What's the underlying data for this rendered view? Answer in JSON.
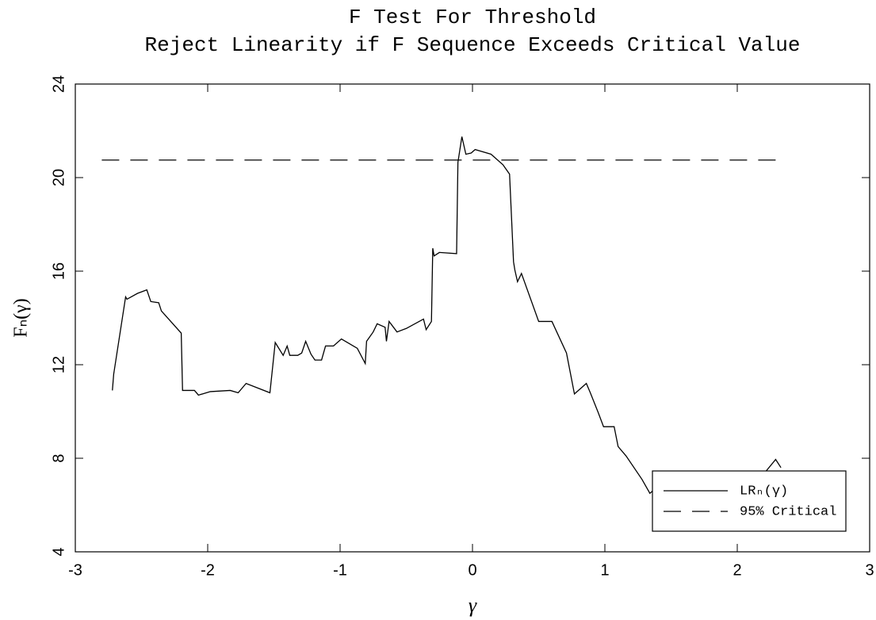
{
  "chart_data": {
    "type": "line",
    "title": "F Test For Threshold",
    "subtitle": "Reject Linearity if F Sequence Exceeds Critical Value",
    "xlabel": "γ",
    "ylabel": "Fₙ(γ)",
    "xlim": [
      -3,
      3
    ],
    "xticks": [
      -3,
      -2,
      -1,
      0,
      1,
      2,
      3
    ],
    "ylim": [
      4,
      24
    ],
    "yticks": [
      4,
      8,
      12,
      16,
      20,
      24
    ],
    "legend": "lower right",
    "series": [
      {
        "name": "LRₙ(γ)",
        "color": "#000000",
        "style": "solid",
        "x": [
          -2.72,
          -2.71,
          -2.62,
          -2.61,
          -2.53,
          -2.46,
          -2.43,
          -2.37,
          -2.35,
          -2.2,
          -2.19,
          -2.1,
          -2.07,
          -1.98,
          -1.83,
          -1.77,
          -1.71,
          -1.53,
          -1.49,
          -1.43,
          -1.4,
          -1.38,
          -1.32,
          -1.29,
          -1.26,
          -1.22,
          -1.19,
          -1.14,
          -1.11,
          -1.05,
          -0.99,
          -0.87,
          -0.81,
          -0.8,
          -0.75,
          -0.72,
          -0.66,
          -0.65,
          -0.63,
          -0.57,
          -0.5,
          -0.37,
          -0.35,
          -0.31,
          -0.3,
          -0.29,
          -0.25,
          -0.12,
          -0.11,
          -0.08,
          -0.05,
          -0.01,
          0.02,
          0.14,
          0.23,
          0.28,
          0.31,
          0.32,
          0.34,
          0.37,
          0.5,
          0.6,
          0.71,
          0.77,
          0.86,
          0.89,
          0.95,
          0.99,
          1.07,
          1.1,
          1.16,
          1.28,
          1.34,
          1.37,
          1.52,
          1.61,
          1.82,
          2.06,
          2.21,
          2.29,
          2.33
        ],
        "values": [
          10.9,
          11.6,
          14.9,
          14.8,
          15.05,
          15.2,
          14.7,
          14.65,
          14.3,
          13.35,
          10.9,
          10.9,
          10.7,
          10.85,
          10.9,
          10.8,
          11.2,
          10.8,
          12.95,
          12.4,
          12.8,
          12.4,
          12.4,
          12.5,
          13.0,
          12.45,
          12.2,
          12.2,
          12.8,
          12.8,
          13.1,
          12.7,
          12.05,
          13.0,
          13.4,
          13.75,
          13.6,
          13.0,
          13.85,
          13.4,
          13.55,
          13.95,
          13.5,
          13.85,
          16.98,
          16.65,
          16.8,
          16.75,
          20.65,
          21.75,
          21.0,
          21.05,
          21.2,
          21.0,
          20.55,
          20.15,
          16.4,
          16.05,
          15.55,
          15.9,
          13.85,
          13.85,
          12.5,
          10.75,
          11.2,
          10.8,
          9.95,
          9.35,
          9.35,
          8.5,
          8.1,
          7.1,
          6.5,
          6.65,
          5.2,
          4.97,
          5.2,
          5.9,
          7.4,
          7.95,
          7.6
        ]
      },
      {
        "name": "95% Critical",
        "color": "#000000",
        "style": "dashed",
        "x": [
          -2.8,
          2.3
        ],
        "values": [
          20.75,
          20.75
        ]
      }
    ]
  }
}
